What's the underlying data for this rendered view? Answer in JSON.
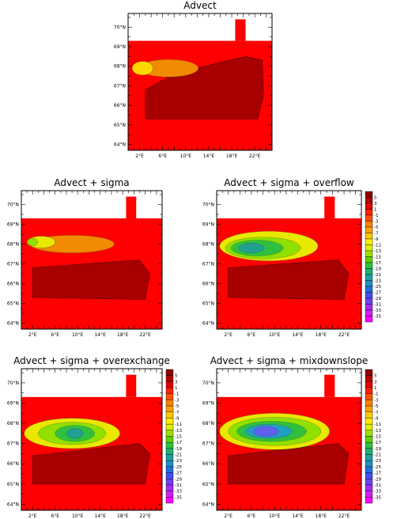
{
  "chart_data": [
    {
      "type": "heatmap",
      "title": "Advect",
      "x_ticks": [
        "2°E",
        "6°E",
        "10°E",
        "14°E",
        "18°E",
        "22°E"
      ],
      "y_ticks": [
        "70°N",
        "69°N",
        "68°N",
        "67°N",
        "66°N",
        "65°N",
        "64°N"
      ],
      "xlim": [
        0,
        25
      ],
      "ylim": [
        63.7,
        70.7
      ],
      "colorbar": false,
      "blobs": [
        {
          "cx": 7,
          "cy": 67.9,
          "rx": 5.2,
          "ry": 0.45,
          "color": "#f08a00"
        },
        {
          "cx": 2.5,
          "cy": 67.9,
          "rx": 1.8,
          "ry": 0.35,
          "color": "#ffd700"
        }
      ],
      "dark_region": {
        "outer": [
          [
            3,
            65.3
          ],
          [
            22.5,
            65.3
          ],
          [
            23.5,
            66.5
          ],
          [
            23.3,
            68.3
          ],
          [
            20.5,
            68.5
          ],
          [
            16,
            68.2
          ],
          [
            8,
            67.6
          ],
          [
            3,
            66.8
          ]
        ]
      }
    },
    {
      "type": "heatmap",
      "title": "Advect + sigma",
      "x_ticks": [
        "2°E",
        "6°E",
        "10°E",
        "14°E",
        "18°E",
        "22°E"
      ],
      "y_ticks": [
        "70°N",
        "69°N",
        "68°N",
        "67°N",
        "66°N",
        "65°N",
        "64°N"
      ],
      "xlim": [
        0,
        25
      ],
      "ylim": [
        63.7,
        70.7
      ],
      "colorbar": false,
      "blobs": [
        {
          "cx": 9,
          "cy": 68.0,
          "rx": 7.5,
          "ry": 0.45,
          "color": "#f08a00"
        },
        {
          "cx": 3.5,
          "cy": 68.1,
          "rx": 2.5,
          "ry": 0.3,
          "color": "#e8e800"
        },
        {
          "cx": 2.0,
          "cy": 68.1,
          "rx": 0.9,
          "ry": 0.2,
          "color": "#90e000"
        }
      ],
      "dark_region": {
        "outer": [
          [
            2,
            65.3
          ],
          [
            22,
            65.2
          ],
          [
            22.8,
            66.5
          ],
          [
            21,
            67.2
          ],
          [
            2,
            66.8
          ]
        ]
      }
    },
    {
      "type": "heatmap",
      "title": "Advect + sigma + overflow",
      "x_ticks": [
        "2°E",
        "6°E",
        "10°E",
        "14°E",
        "18°E",
        "22°E"
      ],
      "y_ticks": [
        "70°N",
        "69°N",
        "68°N",
        "67°N",
        "66°N",
        "65°N",
        "64°N"
      ],
      "xlim": [
        0,
        25
      ],
      "ylim": [
        63.7,
        70.7
      ],
      "colorbar": true,
      "blobs": [
        {
          "cx": 9,
          "cy": 67.9,
          "rx": 8.5,
          "ry": 0.75,
          "color": "#e8e800"
        },
        {
          "cx": 8,
          "cy": 67.8,
          "rx": 6.5,
          "ry": 0.55,
          "color": "#90e000"
        },
        {
          "cx": 7,
          "cy": 67.8,
          "rx": 4.5,
          "ry": 0.4,
          "color": "#30c040"
        },
        {
          "cx": 6,
          "cy": 67.8,
          "rx": 2.2,
          "ry": 0.25,
          "color": "#20a090"
        }
      ],
      "dark_region": {
        "outer": [
          [
            2,
            65.3
          ],
          [
            22,
            65.2
          ],
          [
            22.8,
            66.5
          ],
          [
            21,
            67.2
          ],
          [
            2,
            66.8
          ]
        ]
      }
    },
    {
      "type": "heatmap",
      "title": "Advect + sigma + overexchange",
      "x_ticks": [
        "2°E",
        "6°E",
        "10°E",
        "14°E",
        "18°E",
        "22°E"
      ],
      "y_ticks": [
        "70°N",
        "69°N",
        "68°N",
        "67°N",
        "66°N",
        "65°N",
        "64°N"
      ],
      "xlim": [
        0,
        25
      ],
      "ylim": [
        63.7,
        70.7
      ],
      "colorbar": true,
      "blobs": [
        {
          "cx": 9,
          "cy": 67.5,
          "rx": 8.5,
          "ry": 0.75,
          "color": "#e8e800"
        },
        {
          "cx": 9,
          "cy": 67.5,
          "rx": 6.0,
          "ry": 0.55,
          "color": "#90e000"
        },
        {
          "cx": 9.5,
          "cy": 67.5,
          "rx": 3.5,
          "ry": 0.4,
          "color": "#30c040"
        },
        {
          "cx": 9.5,
          "cy": 67.5,
          "rx": 1.5,
          "ry": 0.25,
          "color": "#20a090"
        }
      ],
      "dark_region": {
        "outer": [
          [
            2,
            65.0
          ],
          [
            22,
            65.0
          ],
          [
            22.8,
            66.5
          ],
          [
            21,
            67.0
          ],
          [
            2,
            66.4
          ]
        ]
      }
    },
    {
      "type": "heatmap",
      "title": "Advect + sigma + mixdownslope",
      "x_ticks": [
        "2°E",
        "6°E",
        "10°E",
        "14°E",
        "18°E",
        "22°E"
      ],
      "y_ticks": [
        "70°N",
        "69°N",
        "68°N",
        "67°N",
        "66°N",
        "65°N",
        "64°N"
      ],
      "xlim": [
        0,
        25
      ],
      "ylim": [
        63.7,
        70.7
      ],
      "colorbar": true,
      "blobs": [
        {
          "cx": 10,
          "cy": 67.6,
          "rx": 9.5,
          "ry": 0.9,
          "color": "#e8e800"
        },
        {
          "cx": 10,
          "cy": 67.6,
          "rx": 8.0,
          "ry": 0.7,
          "color": "#90e000"
        },
        {
          "cx": 9.5,
          "cy": 67.6,
          "rx": 6.0,
          "ry": 0.5,
          "color": "#30c040"
        },
        {
          "cx": 9.0,
          "cy": 67.6,
          "rx": 4.0,
          "ry": 0.35,
          "color": "#20a0c0"
        },
        {
          "cx": 8.5,
          "cy": 67.6,
          "rx": 2.2,
          "ry": 0.25,
          "color": "#6060f0"
        }
      ],
      "dark_region": {
        "outer": [
          [
            2,
            65.0
          ],
          [
            22,
            65.0
          ],
          [
            22.8,
            66.5
          ],
          [
            21,
            67.0
          ],
          [
            2,
            66.4
          ]
        ]
      }
    }
  ],
  "colorbar": {
    "labels": [
      "5",
      "3",
      "1",
      "-1",
      "-3",
      "-5",
      "-7",
      "-9",
      "-11",
      "-13",
      "-15",
      "-17",
      "-19",
      "-21",
      "-23",
      "-25",
      "-27",
      "-29",
      "-31",
      "-33",
      "-35"
    ],
    "colors": [
      "#8b0000",
      "#b20000",
      "#e00000",
      "#ff2000",
      "#ff5000",
      "#ff8000",
      "#ffa000",
      "#ffc800",
      "#ffee00",
      "#e0f000",
      "#a0e000",
      "#60d000",
      "#30c040",
      "#20b070",
      "#20a0a0",
      "#2090c0",
      "#2070e0",
      "#4050f0",
      "#7040f0",
      "#a030f0",
      "#d020f0",
      "#ff00ff"
    ]
  },
  "colors": {
    "land": "#ffffff",
    "base": "#ff0000",
    "dark": "#a80000",
    "darker": "#8a0000"
  }
}
